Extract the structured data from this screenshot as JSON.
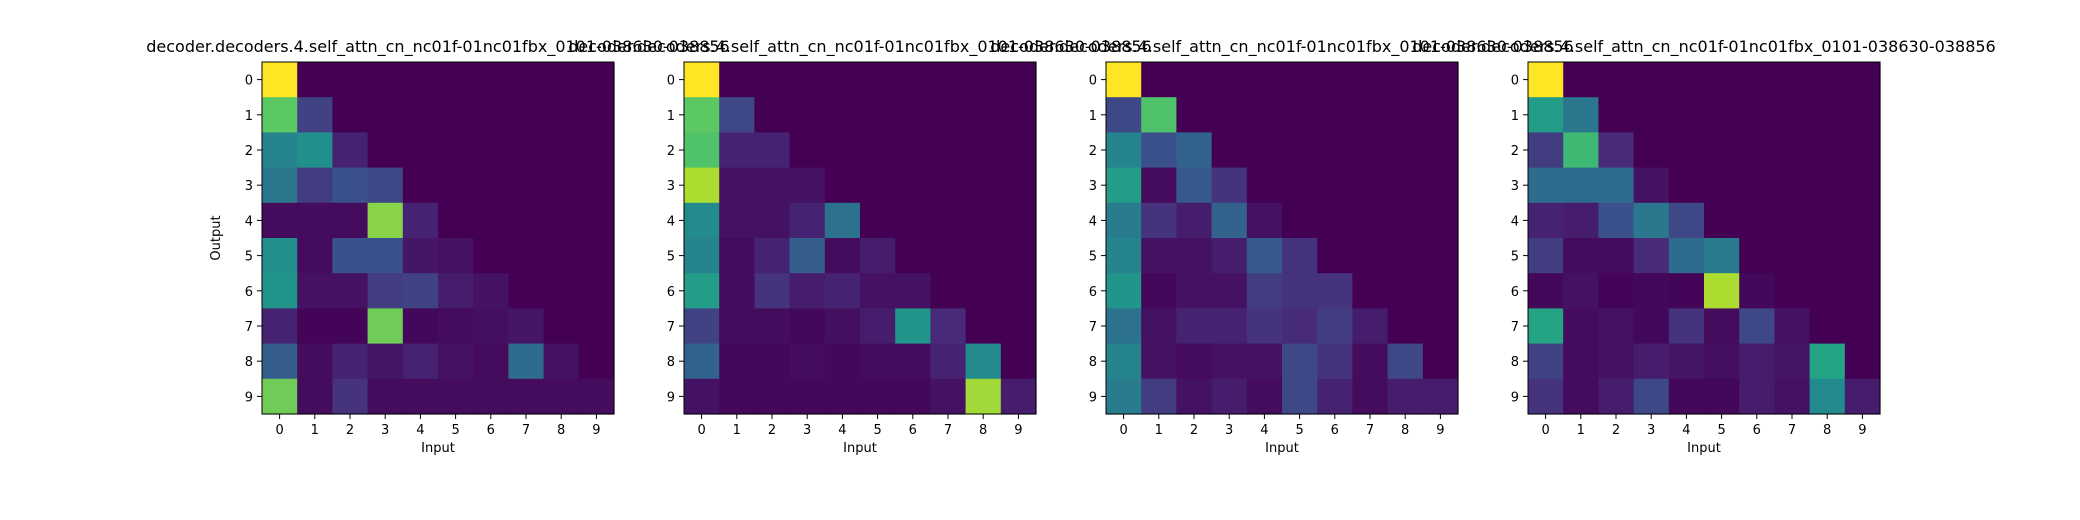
{
  "colormap": "viridis",
  "chart_data": [
    {
      "type": "heatmap",
      "title": "decoder.decoders.4.self_attn_cn_nc01f-01nc01fbx_0101-038630-038856",
      "xlabel": "Input",
      "ylabel": "Output",
      "x_ticks": [
        "0",
        "1",
        "2",
        "3",
        "4",
        "5",
        "6",
        "7",
        "8",
        "9"
      ],
      "y_ticks": [
        "0",
        "1",
        "2",
        "3",
        "4",
        "5",
        "6",
        "7",
        "8",
        "9"
      ],
      "values": [
        [
          1.0,
          0,
          0,
          0,
          0,
          0,
          0,
          0,
          0,
          0
        ],
        [
          0.75,
          0.2,
          0,
          0,
          0,
          0,
          0,
          0,
          0,
          0
        ],
        [
          0.45,
          0.5,
          0.1,
          0,
          0,
          0,
          0,
          0,
          0,
          0
        ],
        [
          0.4,
          0.18,
          0.25,
          0.22,
          0,
          0,
          0,
          0,
          0,
          0
        ],
        [
          0.03,
          0.03,
          0.03,
          0.82,
          0.1,
          0,
          0,
          0,
          0,
          0
        ],
        [
          0.5,
          0.03,
          0.25,
          0.25,
          0.06,
          0.05,
          0,
          0,
          0,
          0
        ],
        [
          0.52,
          0.05,
          0.05,
          0.18,
          0.2,
          0.08,
          0.05,
          0,
          0,
          0
        ],
        [
          0.1,
          0.01,
          0.01,
          0.78,
          0.02,
          0.03,
          0.04,
          0.06,
          0,
          0
        ],
        [
          0.3,
          0.03,
          0.1,
          0.06,
          0.1,
          0.05,
          0.03,
          0.35,
          0.05,
          0
        ],
        [
          0.78,
          0.03,
          0.15,
          0.03,
          0.03,
          0.03,
          0.03,
          0.03,
          0.03,
          0.03
        ]
      ]
    },
    {
      "type": "heatmap",
      "title": "decoder.decoders.4.self_attn_cn_nc01f-01nc01fbx_0101-038630-038856",
      "xlabel": "Input",
      "ylabel": "",
      "x_ticks": [
        "0",
        "1",
        "2",
        "3",
        "4",
        "5",
        "6",
        "7",
        "8",
        "9"
      ],
      "y_ticks": [
        "0",
        "1",
        "2",
        "3",
        "4",
        "5",
        "6",
        "7",
        "8",
        "9"
      ],
      "values": [
        [
          1.0,
          0,
          0,
          0,
          0,
          0,
          0,
          0,
          0,
          0
        ],
        [
          0.75,
          0.22,
          0,
          0,
          0,
          0,
          0,
          0,
          0,
          0
        ],
        [
          0.72,
          0.1,
          0.1,
          0,
          0,
          0,
          0,
          0,
          0,
          0
        ],
        [
          0.88,
          0.05,
          0.05,
          0.05,
          0,
          0,
          0,
          0,
          0,
          0
        ],
        [
          0.48,
          0.05,
          0.05,
          0.1,
          0.38,
          0,
          0,
          0,
          0,
          0
        ],
        [
          0.45,
          0.03,
          0.1,
          0.3,
          0.03,
          0.08,
          0,
          0,
          0,
          0
        ],
        [
          0.55,
          0.03,
          0.15,
          0.08,
          0.1,
          0.05,
          0.05,
          0,
          0,
          0
        ],
        [
          0.2,
          0.03,
          0.03,
          0.02,
          0.04,
          0.08,
          0.52,
          0.12,
          0,
          0
        ],
        [
          0.32,
          0.02,
          0.02,
          0.03,
          0.02,
          0.03,
          0.03,
          0.1,
          0.48,
          0
        ],
        [
          0.05,
          0.02,
          0.02,
          0.02,
          0.02,
          0.02,
          0.02,
          0.05,
          0.86,
          0.08
        ]
      ]
    },
    {
      "type": "heatmap",
      "title": "decoder.decoders.4.self_attn_cn_nc01f-01nc01fbx_0101-038630-038856",
      "xlabel": "Input",
      "ylabel": "",
      "x_ticks": [
        "0",
        "1",
        "2",
        "3",
        "4",
        "5",
        "6",
        "7",
        "8",
        "9"
      ],
      "y_ticks": [
        "0",
        "1",
        "2",
        "3",
        "4",
        "5",
        "6",
        "7",
        "8",
        "9"
      ],
      "values": [
        [
          1.0,
          0,
          0,
          0,
          0,
          0,
          0,
          0,
          0,
          0
        ],
        [
          0.22,
          0.72,
          0,
          0,
          0,
          0,
          0,
          0,
          0,
          0
        ],
        [
          0.45,
          0.25,
          0.32,
          0,
          0,
          0,
          0,
          0,
          0,
          0
        ],
        [
          0.55,
          0.03,
          0.28,
          0.15,
          0,
          0,
          0,
          0,
          0,
          0
        ],
        [
          0.42,
          0.15,
          0.08,
          0.32,
          0.05,
          0,
          0,
          0,
          0,
          0
        ],
        [
          0.45,
          0.05,
          0.05,
          0.08,
          0.28,
          0.15,
          0,
          0,
          0,
          0
        ],
        [
          0.52,
          0.02,
          0.05,
          0.05,
          0.18,
          0.15,
          0.15,
          0,
          0,
          0
        ],
        [
          0.38,
          0.05,
          0.1,
          0.1,
          0.15,
          0.12,
          0.18,
          0.08,
          0,
          0
        ],
        [
          0.45,
          0.05,
          0.03,
          0.05,
          0.05,
          0.22,
          0.15,
          0.03,
          0.22,
          0
        ],
        [
          0.42,
          0.18,
          0.05,
          0.08,
          0.03,
          0.22,
          0.1,
          0.03,
          0.08,
          0.08
        ]
      ]
    },
    {
      "type": "heatmap",
      "title": "decoder.decoders.4.self_attn_cn_nc01f-01nc01fbx_0101-038630-038856",
      "xlabel": "Input",
      "ylabel": "",
      "x_ticks": [
        "0",
        "1",
        "2",
        "3",
        "4",
        "5",
        "6",
        "7",
        "8",
        "9"
      ],
      "y_ticks": [
        "0",
        "1",
        "2",
        "3",
        "4",
        "5",
        "6",
        "7",
        "8",
        "9"
      ],
      "values": [
        [
          1.0,
          0,
          0,
          0,
          0,
          0,
          0,
          0,
          0,
          0
        ],
        [
          0.55,
          0.4,
          0,
          0,
          0,
          0,
          0,
          0,
          0,
          0
        ],
        [
          0.18,
          0.68,
          0.12,
          0,
          0,
          0,
          0,
          0,
          0,
          0
        ],
        [
          0.35,
          0.35,
          0.35,
          0.05,
          0,
          0,
          0,
          0,
          0,
          0
        ],
        [
          0.1,
          0.08,
          0.25,
          0.4,
          0.22,
          0,
          0,
          0,
          0,
          0
        ],
        [
          0.18,
          0.03,
          0.03,
          0.12,
          0.35,
          0.42,
          0,
          0,
          0,
          0
        ],
        [
          0.02,
          0.05,
          0.01,
          0.02,
          0.01,
          0.88,
          0.02,
          0,
          0,
          0
        ],
        [
          0.58,
          0.03,
          0.05,
          0.02,
          0.15,
          0.03,
          0.22,
          0.05,
          0,
          0
        ],
        [
          0.2,
          0.03,
          0.05,
          0.08,
          0.06,
          0.04,
          0.08,
          0.06,
          0.58,
          0
        ],
        [
          0.15,
          0.03,
          0.08,
          0.22,
          0.02,
          0.02,
          0.08,
          0.05,
          0.48,
          0.08
        ]
      ]
    }
  ]
}
